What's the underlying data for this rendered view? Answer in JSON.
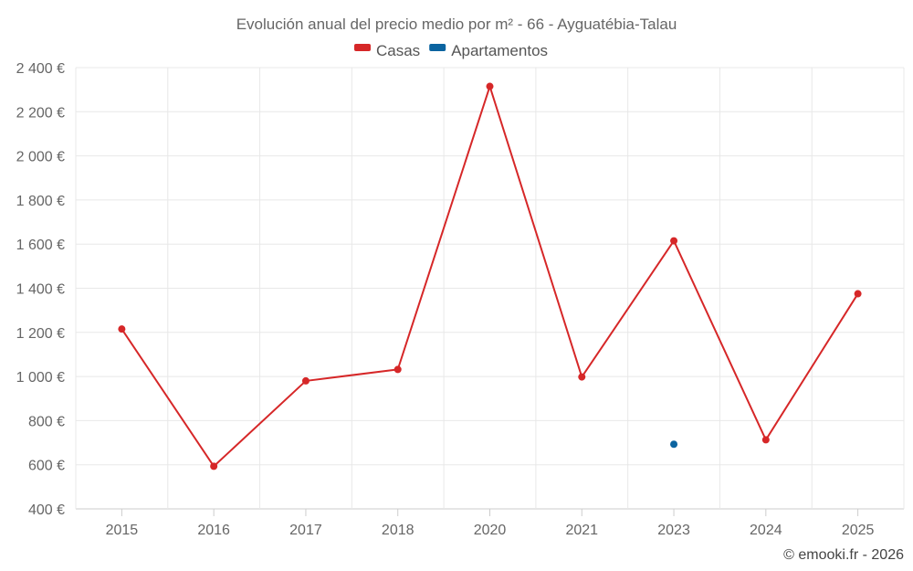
{
  "chart_data": {
    "type": "line",
    "title": "Evolución anual del precio medio por m² - 66 - Ayguatébia-Talau",
    "categories": [
      "2015",
      "2016",
      "2017",
      "2018",
      "2020",
      "2021",
      "2023",
      "2024",
      "2025"
    ],
    "series": [
      {
        "name": "Casas",
        "color": "#d62728",
        "values": [
          1215,
          593,
          980,
          1032,
          2315,
          998,
          1615,
          713,
          1375
        ]
      },
      {
        "name": "Apartamentos",
        "color": "#0b64a0",
        "values": [
          null,
          null,
          null,
          null,
          null,
          null,
          693,
          null,
          null
        ]
      }
    ],
    "y_ticks": [
      "400 €",
      "600 €",
      "800 €",
      "1 000 €",
      "1 200 €",
      "1 400 €",
      "1 600 €",
      "1 800 €",
      "2 000 €",
      "2 200 €",
      "2 400 €"
    ],
    "ylim": [
      400,
      2400
    ],
    "ylabel": "",
    "xlabel": ""
  },
  "credit": "© emooki.fr - 2026"
}
